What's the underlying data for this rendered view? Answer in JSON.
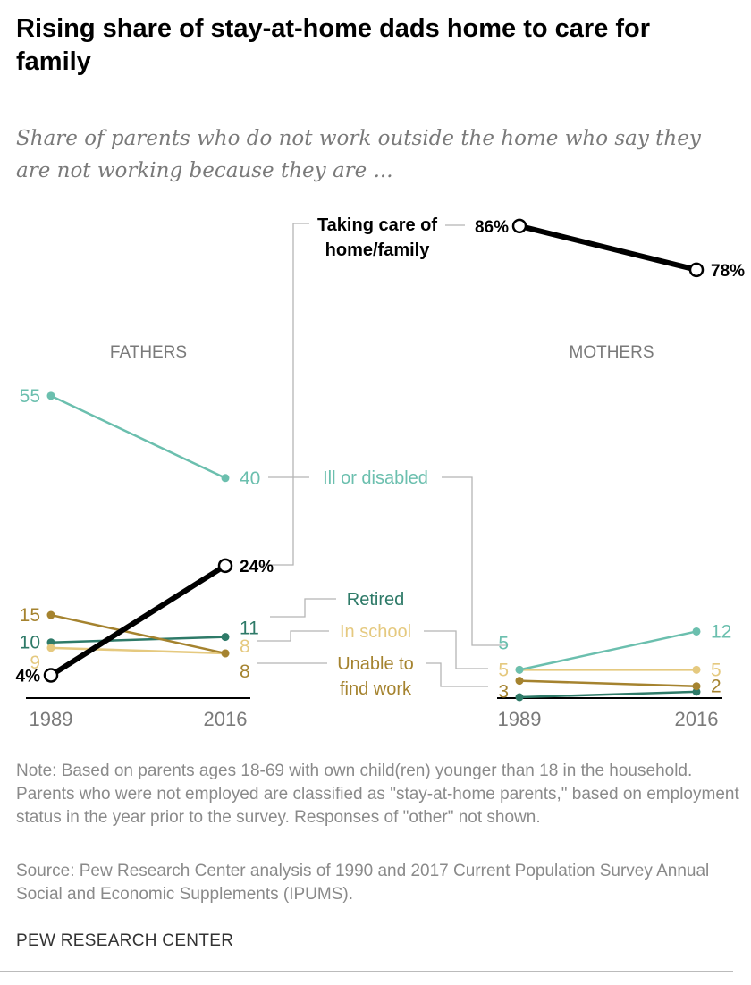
{
  "chart_data": {
    "type": "line",
    "title": "Rising share of stay-at-home dads home to care for family",
    "subtitle": "Share of parents who do not work outside the home who say they are not working because they are ...",
    "x": [
      "1989",
      "2016"
    ],
    "ylim": [
      0,
      90
    ],
    "grid": false,
    "panels": [
      {
        "name": "FATHERS",
        "series": [
          {
            "name": "Taking care of home/family",
            "values": [
              4,
              24
            ],
            "labels": [
              "4%",
              "24%"
            ],
            "color": "#000000"
          },
          {
            "name": "Ill or disabled",
            "values": [
              55,
              40
            ],
            "labels": [
              "55",
              "40"
            ],
            "color": "#6bbfae"
          },
          {
            "name": "Retired",
            "values": [
              10,
              11
            ],
            "labels": [
              "10",
              "11"
            ],
            "color": "#2e7a68"
          },
          {
            "name": "In school",
            "values": [
              9,
              8
            ],
            "labels": [
              "9",
              "8"
            ],
            "color": "#e5c97f"
          },
          {
            "name": "Unable to find work",
            "values": [
              15,
              8
            ],
            "labels": [
              "15",
              "8"
            ],
            "color": "#a5832f"
          }
        ]
      },
      {
        "name": "MOTHERS",
        "series": [
          {
            "name": "Taking care of home/family",
            "values": [
              86,
              78
            ],
            "labels": [
              "86%",
              "78%"
            ],
            "color": "#000000"
          },
          {
            "name": "Ill or disabled",
            "values": [
              5,
              12
            ],
            "labels": [
              "5",
              "12"
            ],
            "color": "#6bbfae"
          },
          {
            "name": "Retired",
            "values": [
              0,
              1
            ],
            "labels": [
              "",
              ""
            ],
            "color": "#2e7a68"
          },
          {
            "name": "In school",
            "values": [
              5,
              5
            ],
            "labels": [
              "5",
              "5"
            ],
            "color": "#e5c97f"
          },
          {
            "name": "Unable to find work",
            "values": [
              3,
              2
            ],
            "labels": [
              "3",
              "2"
            ],
            "color": "#a5832f"
          }
        ]
      }
    ],
    "series_labels": {
      "care_line1": "Taking care of",
      "care_line2": "home/family",
      "ill": "Ill or disabled",
      "retired": "Retired",
      "school": "In school",
      "unable_line1": "Unable to",
      "unable_line2": "find work"
    }
  },
  "note": "Note: Based on parents ages 18-69 with own child(ren) younger than 18 in the household. Parents who were not employed are classified as \"stay-at-home parents,\" based on employment status in the year prior to the survey. Responses of \"other\" not shown.",
  "source": "Source: Pew Research Center analysis of 1990 and 2017 Current Population Survey Annual Social and Economic Supplements (IPUMS).",
  "brand": "PEW RESEARCH CENTER"
}
